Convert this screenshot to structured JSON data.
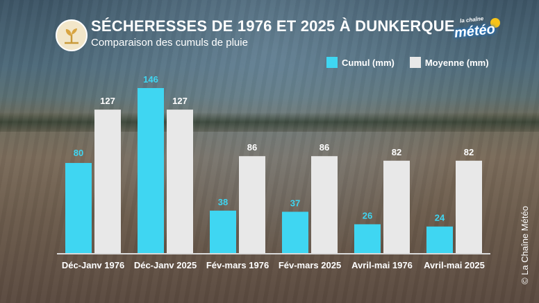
{
  "header": {
    "title": "SÉCHERESSES DE 1976 ET 2025 À DUNKERQUE",
    "subtitle": "Comparaison des cumuls de pluie"
  },
  "logo": {
    "small": "la chaîne",
    "big": "météo"
  },
  "credit": "© La Chaîne Météo",
  "chart_data": {
    "type": "bar",
    "title": "SÉCHERESSES DE 1976 ET 2025 À DUNKERQUE",
    "subtitle": "Comparaison des cumuls de pluie",
    "categories": [
      "Déc-Janv 1976",
      "Déc-Janv 2025",
      "Fév-mars 1976",
      "Fév-mars 2025",
      "Avril-mai 1976",
      "Avril-mai 2025"
    ],
    "series": [
      {
        "name": "Cumul (mm)",
        "color": "#3fd6f2",
        "values": [
          80,
          146,
          38,
          37,
          26,
          24
        ]
      },
      {
        "name": "Moyenne (mm)",
        "color": "#e8e8e8",
        "values": [
          127,
          127,
          86,
          86,
          82,
          82
        ]
      }
    ],
    "ylim": [
      0,
      146
    ],
    "legend": "top-right",
    "grid": false
  }
}
